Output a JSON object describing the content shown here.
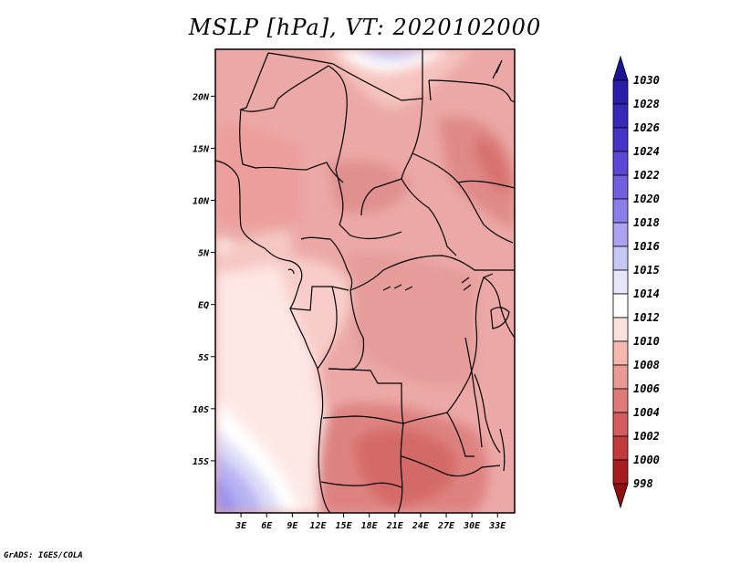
{
  "title": "MSLP [hPa], VT: 2020102000",
  "credit": "GrADS: IGES/COLA",
  "map": {
    "lat_labels": [
      "20N",
      "15N",
      "10N",
      "5N",
      "EQ",
      "5S",
      "10S",
      "15S"
    ],
    "lon_labels": [
      "3E",
      "6E",
      "9E",
      "12E",
      "15E",
      "18E",
      "21E",
      "24E",
      "27E",
      "30E",
      "33E"
    ],
    "extent": {
      "lon": [
        0,
        35
      ],
      "lat": [
        -20,
        24.5
      ]
    }
  },
  "colorbar": {
    "labels": [
      "1030",
      "1028",
      "1026",
      "1024",
      "1022",
      "1020",
      "1018",
      "1016",
      "1015",
      "1014",
      "1012",
      "1010",
      "1008",
      "1006",
      "1004",
      "1002",
      "1000",
      "998"
    ],
    "colors": [
      "#1e1496",
      "#2a1fa8",
      "#3828b8",
      "#4634c8",
      "#5a48d6",
      "#7060e0",
      "#8a7eea",
      "#a8a2f0",
      "#c8c8f6",
      "#e6e6fa",
      "#ffffff",
      "#fce0dc",
      "#f4b8b0",
      "#ea9a94",
      "#de7a7a",
      "#d45c5c",
      "#c23a3a",
      "#a81e1e",
      "#8e1010"
    ]
  }
}
